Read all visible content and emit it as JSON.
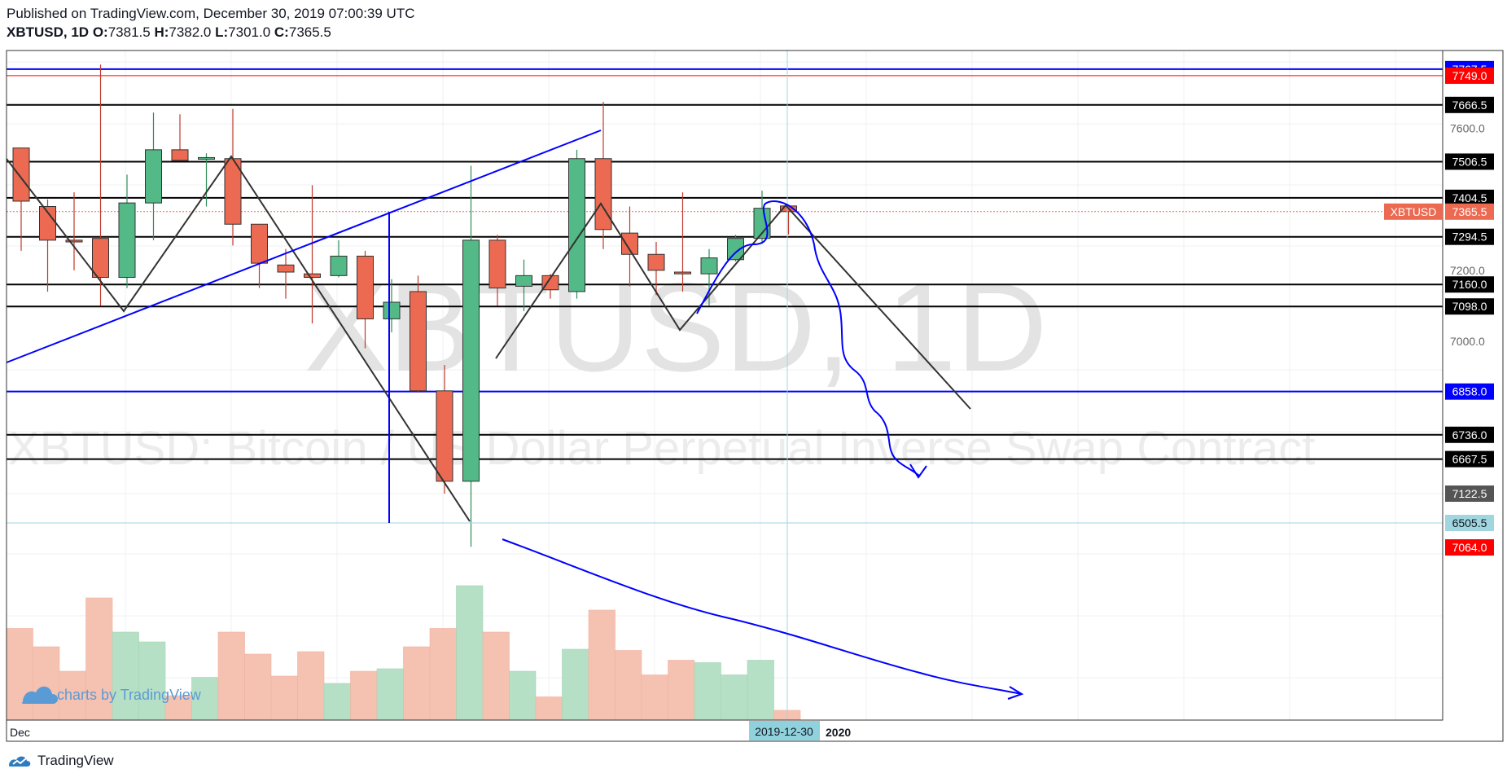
{
  "header": {
    "published": "Published on TradingView.com, December 30, 2019 07:00:39 UTC",
    "symbol": "XBTUSD, 1D",
    "o_label": "O:",
    "o_value": "7381.5",
    "h_label": "H:",
    "h_value": "7382.0",
    "l_label": "L:",
    "l_value": "7301.0",
    "c_label": "C:",
    "c_value": "7365.5"
  },
  "watermark": {
    "big": "XBTUSD, 1D",
    "long": "XBTUSD: Bitcoin / US Dollar Perpetual Inverse Swap Contract"
  },
  "branding": {
    "charts_by": "charts by TradingView",
    "footer": "TradingView"
  },
  "colors": {
    "up": "#53b987",
    "down": "#eb6a51",
    "up_vol": "#b6e0c5",
    "down_vol": "#f5c2b2",
    "blue": "#0000ff",
    "red": "#ff0000",
    "black": "#000000",
    "crosshair": "#9fd6e0",
    "grid": "#eef0f3"
  },
  "chart_data": {
    "type": "candlestick",
    "symbol": "XBTUSD",
    "interval": "1D",
    "ylim": [
      6400,
      7820
    ],
    "x_ticks": [
      "Dec",
      "2019-12-30",
      "2020"
    ],
    "price_ticks": [
      7600.0,
      7200.0,
      7000.0
    ],
    "candles": [
      {
        "o": 7545,
        "h": 7545,
        "l": 7255,
        "c": 7395
      },
      {
        "o": 7380,
        "h": 7400,
        "l": 7140,
        "c": 7285
      },
      {
        "o": 7285,
        "h": 7420,
        "l": 7200,
        "c": 7280
      },
      {
        "o": 7290,
        "h": 7780,
        "l": 7100,
        "c": 7180
      },
      {
        "o": 7180,
        "h": 7470,
        "l": 7150,
        "c": 7390
      },
      {
        "o": 7390,
        "h": 7645,
        "l": 7285,
        "c": 7540
      },
      {
        "o": 7540,
        "h": 7640,
        "l": 7510,
        "c": 7510
      },
      {
        "o": 7515,
        "h": 7530,
        "l": 7380,
        "c": 7518
      },
      {
        "o": 7515,
        "h": 7655,
        "l": 7270,
        "c": 7330
      },
      {
        "o": 7330,
        "h": 7330,
        "l": 7150,
        "c": 7220
      },
      {
        "o": 7215,
        "h": 7260,
        "l": 7120,
        "c": 7195
      },
      {
        "o": 7190,
        "h": 7440,
        "l": 7050,
        "c": 7180
      },
      {
        "o": 7185,
        "h": 7285,
        "l": 7180,
        "c": 7240
      },
      {
        "o": 7240,
        "h": 7255,
        "l": 6980,
        "c": 7063
      },
      {
        "o": 7063,
        "h": 7175,
        "l": 7025,
        "c": 7110
      },
      {
        "o": 7140,
        "h": 7185,
        "l": 6855,
        "c": 6860
      },
      {
        "o": 6860,
        "h": 6933,
        "l": 6570,
        "c": 6605
      },
      {
        "o": 6605,
        "h": 7495,
        "l": 6420,
        "c": 7285
      },
      {
        "o": 7285,
        "h": 7300,
        "l": 7100,
        "c": 7150
      },
      {
        "o": 7155,
        "h": 7230,
        "l": 7085,
        "c": 7185
      },
      {
        "o": 7185,
        "h": 7190,
        "l": 7120,
        "c": 7145
      },
      {
        "o": 7140,
        "h": 7540,
        "l": 7120,
        "c": 7515
      },
      {
        "o": 7515,
        "h": 7675,
        "l": 7260,
        "c": 7315
      },
      {
        "o": 7305,
        "h": 7380,
        "l": 7155,
        "c": 7245
      },
      {
        "o": 7245,
        "h": 7280,
        "l": 7130,
        "c": 7200
      },
      {
        "o": 7195,
        "h": 7420,
        "l": 7140,
        "c": 7190
      },
      {
        "o": 7190,
        "h": 7260,
        "l": 7100,
        "c": 7235
      },
      {
        "o": 7230,
        "h": 7300,
        "l": 7225,
        "c": 7290
      },
      {
        "o": 7290,
        "h": 7425,
        "l": 7275,
        "c": 7375
      },
      {
        "o": 7381.5,
        "h": 7382.0,
        "l": 7301.0,
        "c": 7365.5
      }
    ],
    "volume_relative": [
      0.75,
      0.6,
      0.4,
      1.0,
      0.72,
      0.64,
      0.2,
      0.35,
      0.72,
      0.54,
      0.36,
      0.56,
      0.3,
      0.4,
      0.42,
      0.6,
      0.75,
      1.1,
      0.72,
      0.4,
      0.19,
      0.58,
      0.9,
      0.57,
      0.37,
      0.49,
      0.47,
      0.37,
      0.49,
      0.08
    ],
    "horizontal_levels": [
      {
        "label": "7767.5",
        "value": 7767.5,
        "style": "blue"
      },
      {
        "label": "7749.0",
        "value": 7749.0,
        "style": "red"
      },
      {
        "label": "7666.5",
        "value": 7666.5,
        "style": "black"
      },
      {
        "label": "7506.5",
        "value": 7506.5,
        "style": "black"
      },
      {
        "label": "7404.5",
        "value": 7404.5,
        "style": "black"
      },
      {
        "label": "7294.5",
        "value": 7294.5,
        "style": "black"
      },
      {
        "label": "7160.0",
        "value": 7160.0,
        "style": "black"
      },
      {
        "label": "7098.0",
        "value": 7098.0,
        "style": "black"
      },
      {
        "label": "6858.0",
        "value": 6858.0,
        "style": "blue"
      },
      {
        "label": "6736.0",
        "value": 6736.0,
        "style": "black"
      },
      {
        "label": "6667.5",
        "value": 6667.5,
        "style": "black"
      }
    ],
    "axis_badges": [
      {
        "label": "XBTUSD",
        "style": "symbol"
      },
      {
        "label": "7365.5",
        "value": 7365.5,
        "style": "last"
      },
      {
        "label": "7122.5",
        "style": "gray"
      },
      {
        "label": "6505.5",
        "value": 6505.5,
        "style": "crosshair"
      },
      {
        "label": "7064.0",
        "style": "red"
      }
    ],
    "grid": true
  }
}
